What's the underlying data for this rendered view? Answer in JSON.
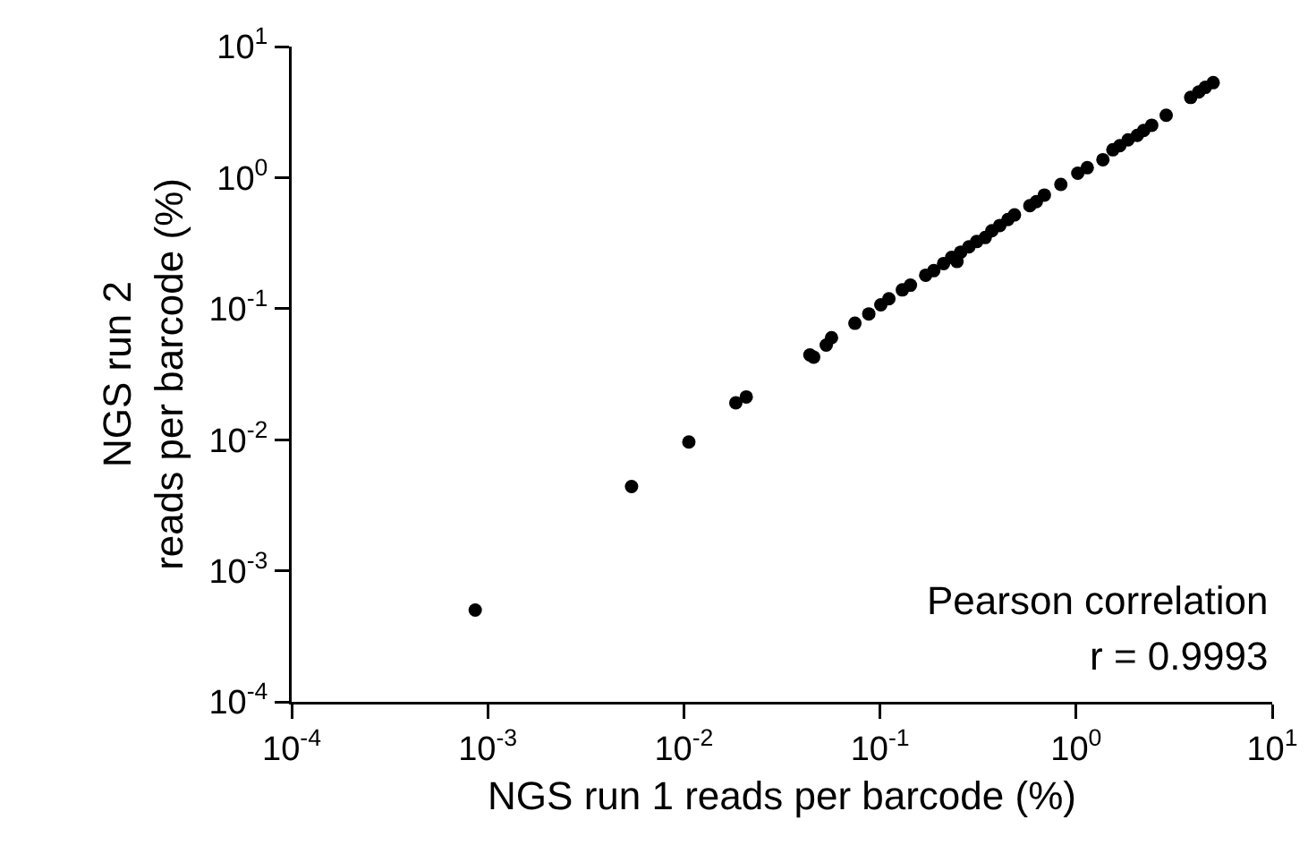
{
  "chart_data": {
    "type": "scatter",
    "xlabel": "NGS run 1 reads per barcode (%)",
    "ylabel": "NGS run 2\nreads per barcode (%)",
    "log": "xy",
    "grid": false,
    "marker": "circle",
    "xlim": [
      0.0001,
      10
    ],
    "ylim": [
      0.0001,
      10
    ],
    "xticks": [
      {
        "value": 0.0001,
        "label": "10$^{-4}$"
      },
      {
        "value": 0.001,
        "label": "10$^{-3}$"
      },
      {
        "value": 0.01,
        "label": "10$^{-2}$"
      },
      {
        "value": 0.1,
        "label": "10$^{-1}$"
      },
      {
        "value": 1,
        "label": "10$^{0}$"
      },
      {
        "value": 10,
        "label": "10$^{1}$"
      }
    ],
    "yticks": [
      {
        "value": 0.0001,
        "label": "10$^{-4}$"
      },
      {
        "value": 0.001,
        "label": "10$^{-3}$"
      },
      {
        "value": 0.01,
        "label": "10$^{-2}$"
      },
      {
        "value": 0.1,
        "label": "10$^{-1}$"
      },
      {
        "value": 1,
        "label": "10$^{0}$"
      },
      {
        "value": 10,
        "label": "10$^{1}$"
      }
    ],
    "annotations": [
      "Pearson correlation",
      "r = 0.9993"
    ],
    "x": [
      0.000863,
      0.00541,
      0.0106,
      0.0184,
      0.0208,
      0.0439,
      0.0459,
      0.0532,
      0.0566,
      0.0745,
      0.0877,
      0.101,
      0.111,
      0.13,
      0.143,
      0.171,
      0.188,
      0.211,
      0.232,
      0.247,
      0.258,
      0.284,
      0.311,
      0.344,
      0.372,
      0.408,
      0.449,
      0.485,
      0.581,
      0.627,
      0.689,
      0.836,
      1.02,
      1.14,
      1.37,
      1.54,
      1.67,
      1.84,
      2.05,
      2.21,
      2.43,
      2.88,
      3.84,
      4.22,
      4.56,
      5.0
    ],
    "series": [
      {
        "color": "#000000",
        "values": [
          0.000501,
          0.00439,
          0.0096,
          0.0191,
          0.0212,
          0.0443,
          0.0427,
          0.0527,
          0.06,
          0.0774,
          0.0912,
          0.107,
          0.119,
          0.139,
          0.151,
          0.18,
          0.195,
          0.221,
          0.246,
          0.229,
          0.27,
          0.296,
          0.325,
          0.349,
          0.393,
          0.431,
          0.479,
          0.519,
          0.611,
          0.656,
          0.736,
          0.887,
          1.08,
          1.19,
          1.37,
          1.63,
          1.75,
          1.94,
          2.1,
          2.29,
          2.51,
          2.99,
          4.09,
          4.5,
          4.88,
          5.3
        ]
      }
    ]
  }
}
